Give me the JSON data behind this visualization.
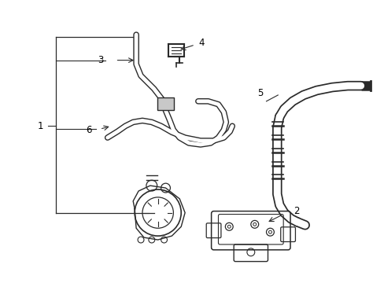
{
  "background_color": "#ffffff",
  "line_color": "#2a2a2a",
  "label_color": "#000000",
  "label_fontsize": 8.5,
  "fig_width": 4.89,
  "fig_height": 3.6,
  "dpi": 100
}
